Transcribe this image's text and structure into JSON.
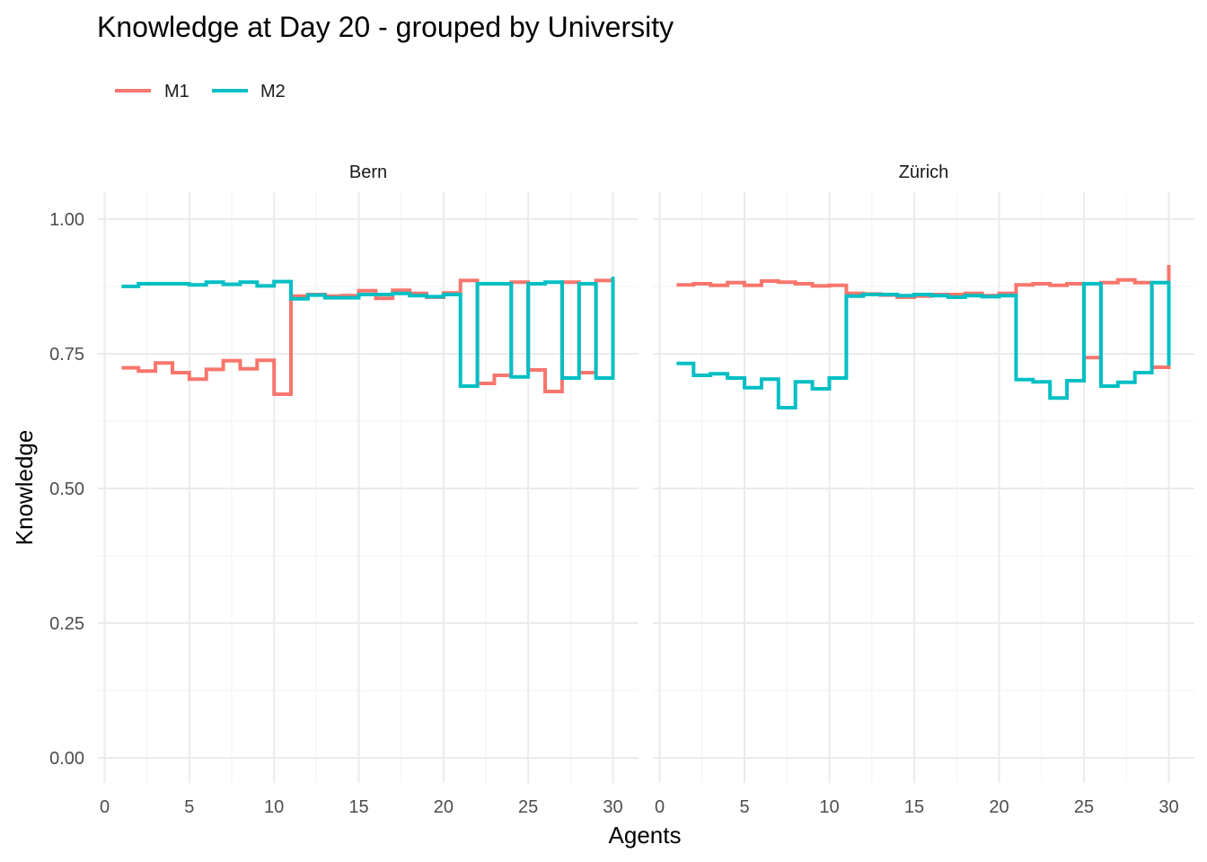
{
  "chart_data": {
    "type": "line",
    "subtype": "step",
    "title": "Knowledge at Day 20 - grouped by University",
    "xlabel": "Agents",
    "ylabel": "Knowledge",
    "xlim": [
      0,
      30
    ],
    "ylim": [
      0,
      1
    ],
    "x_ticks": [
      "0",
      "5",
      "10",
      "15",
      "20",
      "25",
      "30"
    ],
    "y_ticks": [
      "0.00",
      "0.25",
      "0.50",
      "0.75",
      "1.00"
    ],
    "grid": true,
    "legend": {
      "position": "top-left",
      "entries": [
        {
          "name": "M1",
          "color": "#F8766D"
        },
        {
          "name": "M2",
          "color": "#00BFC4"
        }
      ]
    },
    "panels": [
      {
        "name": "Bern",
        "series": [
          {
            "name": "M1",
            "color": "#F8766D",
            "x": [
              1,
              2,
              3,
              4,
              5,
              6,
              7,
              8,
              9,
              10,
              11,
              12,
              13,
              14,
              15,
              16,
              17,
              18,
              19,
              20,
              21,
              22,
              23,
              24,
              25,
              26,
              27,
              28,
              29,
              30
            ],
            "values": [
              0.724,
              0.718,
              0.733,
              0.715,
              0.703,
              0.721,
              0.737,
              0.722,
              0.738,
              0.675,
              0.857,
              0.86,
              0.857,
              0.858,
              0.867,
              0.853,
              0.868,
              0.862,
              0.855,
              0.863,
              0.886,
              0.695,
              0.71,
              0.883,
              0.72,
              0.68,
              0.883,
              0.715,
              0.886,
              0.715
            ]
          },
          {
            "name": "M2",
            "color": "#00BFC4",
            "x": [
              1,
              2,
              3,
              4,
              5,
              6,
              7,
              8,
              9,
              10,
              11,
              12,
              13,
              14,
              15,
              16,
              17,
              18,
              19,
              20,
              21,
              22,
              23,
              24,
              25,
              26,
              27,
              28,
              29,
              30
            ],
            "values": [
              0.875,
              0.88,
              0.88,
              0.88,
              0.878,
              0.883,
              0.879,
              0.883,
              0.876,
              0.884,
              0.852,
              0.859,
              0.854,
              0.854,
              0.86,
              0.86,
              0.862,
              0.858,
              0.856,
              0.86,
              0.69,
              0.88,
              0.88,
              0.707,
              0.88,
              0.883,
              0.705,
              0.88,
              0.705,
              0.893
            ]
          }
        ]
      },
      {
        "name": "Zürich",
        "series": [
          {
            "name": "M1",
            "color": "#F8766D",
            "x": [
              1,
              2,
              3,
              4,
              5,
              6,
              7,
              8,
              9,
              10,
              11,
              12,
              13,
              14,
              15,
              16,
              17,
              18,
              19,
              20,
              21,
              22,
              23,
              24,
              25,
              26,
              27,
              28,
              29,
              30
            ],
            "values": [
              0.878,
              0.88,
              0.877,
              0.882,
              0.877,
              0.885,
              0.883,
              0.88,
              0.876,
              0.877,
              0.862,
              0.861,
              0.859,
              0.855,
              0.857,
              0.86,
              0.86,
              0.862,
              0.858,
              0.862,
              0.878,
              0.88,
              0.877,
              0.88,
              0.743,
              0.882,
              0.887,
              0.882,
              0.725,
              0.915
            ]
          },
          {
            "name": "M2",
            "color": "#00BFC4",
            "x": [
              1,
              2,
              3,
              4,
              5,
              6,
              7,
              8,
              9,
              10,
              11,
              12,
              13,
              14,
              15,
              16,
              17,
              18,
              19,
              20,
              21,
              22,
              23,
              24,
              25,
              26,
              27,
              28,
              29,
              30
            ],
            "values": [
              0.732,
              0.71,
              0.713,
              0.705,
              0.687,
              0.703,
              0.65,
              0.698,
              0.685,
              0.705,
              0.857,
              0.86,
              0.86,
              0.858,
              0.86,
              0.858,
              0.855,
              0.858,
              0.856,
              0.858,
              0.702,
              0.698,
              0.668,
              0.7,
              0.88,
              0.69,
              0.697,
              0.715,
              0.882,
              0.728
            ]
          }
        ]
      }
    ]
  }
}
